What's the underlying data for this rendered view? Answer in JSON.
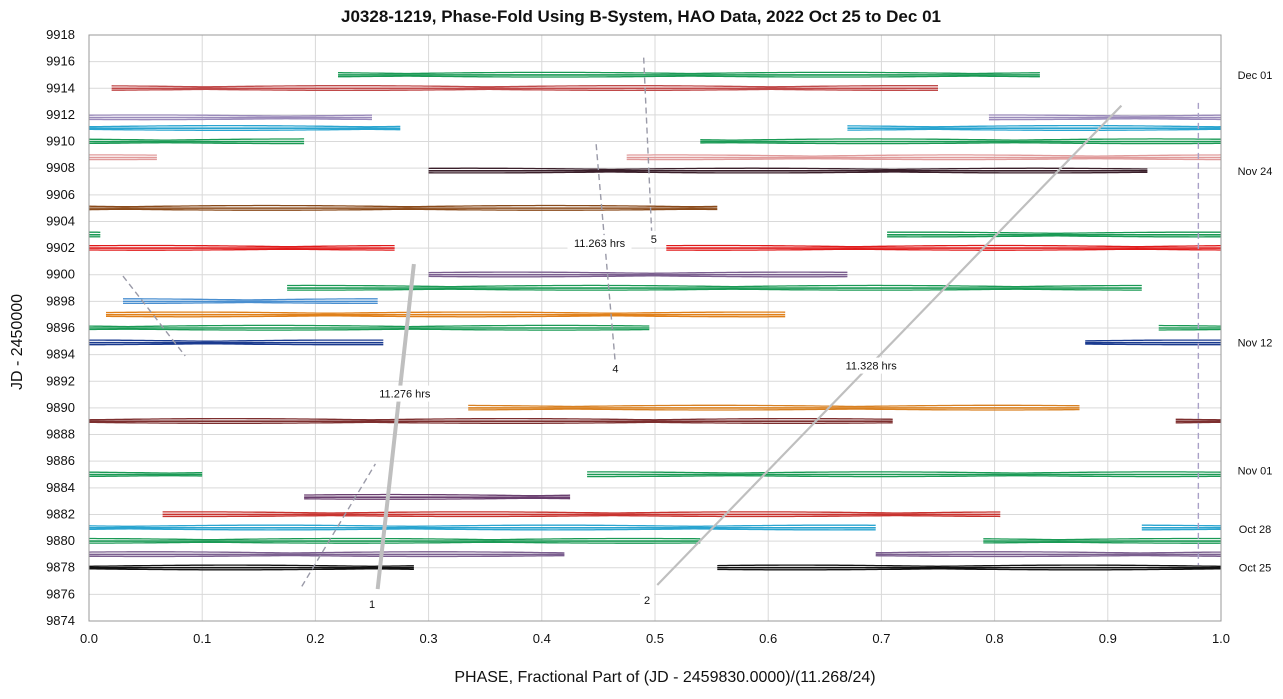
{
  "chart_data": {
    "type": "line",
    "title": "J0328-1219, Phase-Fold Using B-System, HAO Data, 2022 Oct 25 to Dec 01",
    "xlabel": "PHASE, Fractional Part of (JD - 2459830.0000)/(11.268/24)",
    "ylabel": "JD - 2450000",
    "xlim": [
      0.0,
      1.0
    ],
    "ylim": [
      9874,
      9918
    ],
    "xticks": [
      "0.0",
      "0.1",
      "0.2",
      "0.3",
      "0.4",
      "0.5",
      "0.6",
      "0.7",
      "0.8",
      "0.9",
      "1.0"
    ],
    "yticks": [
      "9874",
      "9876",
      "9878",
      "9880",
      "9882",
      "9884",
      "9886",
      "9888",
      "9890",
      "9892",
      "9894",
      "9896",
      "9898",
      "9900",
      "9902",
      "9904",
      "9906",
      "9908",
      "9910",
      "9912",
      "9914",
      "9916",
      "9918"
    ],
    "grid": true,
    "legend": "none",
    "series": [
      {
        "jd": 9878.0,
        "color": "#111111",
        "segments": [
          [
            0.0,
            0.287
          ],
          [
            0.555,
            1.0
          ]
        ]
      },
      {
        "jd": 9879.0,
        "color": "#7b5f8f",
        "segments": [
          [
            0.0,
            0.42
          ],
          [
            0.695,
            1.0
          ]
        ]
      },
      {
        "jd": 9880.0,
        "color": "#1a9a55",
        "segments": [
          [
            0.0,
            0.54
          ],
          [
            0.79,
            1.0
          ]
        ]
      },
      {
        "jd": 9881.0,
        "color": "#2aa5d0",
        "segments": [
          [
            0.0,
            0.695
          ],
          [
            0.93,
            1.0
          ]
        ]
      },
      {
        "jd": 9882.0,
        "color": "#c8332f",
        "segments": [
          [
            0.065,
            0.805
          ]
        ]
      },
      {
        "jd": 9883.3,
        "color": "#6a3f6f",
        "segments": [
          [
            0.19,
            0.425
          ]
        ]
      },
      {
        "jd": 9885.0,
        "color": "#1a9a55",
        "segments": [
          [
            0.0,
            0.1
          ],
          [
            0.44,
            1.0
          ]
        ]
      },
      {
        "jd": 9889.0,
        "color": "#7d2f2f",
        "segments": [
          [
            0.0,
            0.71
          ],
          [
            0.96,
            1.0
          ]
        ]
      },
      {
        "jd": 9890.0,
        "color": "#d98020",
        "segments": [
          [
            0.335,
            0.875
          ]
        ]
      },
      {
        "jd": 9894.9,
        "color": "#1a3a8f",
        "segments": [
          [
            0.0,
            0.26
          ],
          [
            0.88,
            1.0
          ]
        ]
      },
      {
        "jd": 9896.0,
        "color": "#1a9a55",
        "segments": [
          [
            0.0,
            0.495
          ],
          [
            0.945,
            1.0
          ]
        ]
      },
      {
        "jd": 9897.0,
        "color": "#e0801a",
        "segments": [
          [
            0.015,
            0.615
          ]
        ]
      },
      {
        "jd": 9898.0,
        "color": "#4a8fd0",
        "segments": [
          [
            0.03,
            0.255
          ]
        ]
      },
      {
        "jd": 9899.0,
        "color": "#1a9a55",
        "segments": [
          [
            0.175,
            0.93
          ]
        ]
      },
      {
        "jd": 9900.0,
        "color": "#7b5f8f",
        "segments": [
          [
            0.3,
            0.67
          ]
        ]
      },
      {
        "jd": 9902.0,
        "color": "#e01a1a",
        "segments": [
          [
            0.0,
            0.27
          ],
          [
            0.51,
            1.0
          ]
        ]
      },
      {
        "jd": 9903.0,
        "color": "#1a9a55",
        "segments": [
          [
            0.0,
            0.01
          ],
          [
            0.705,
            1.0
          ]
        ]
      },
      {
        "jd": 9905.0,
        "color": "#8a4a1a",
        "segments": [
          [
            0.0,
            0.555
          ]
        ]
      },
      {
        "jd": 9907.8,
        "color": "#3a1f2a",
        "segments": [
          [
            0.3,
            0.935
          ]
        ]
      },
      {
        "jd": 9908.8,
        "color": "#e09a9a",
        "segments": [
          [
            0.0,
            0.06
          ],
          [
            0.475,
            1.0
          ]
        ]
      },
      {
        "jd": 9910.0,
        "color": "#1a9a55",
        "segments": [
          [
            0.0,
            0.19
          ],
          [
            0.54,
            1.0
          ]
        ]
      },
      {
        "jd": 9911.0,
        "color": "#2aa5d0",
        "segments": [
          [
            0.0,
            0.275
          ],
          [
            0.67,
            1.0
          ]
        ]
      },
      {
        "jd": 9911.8,
        "color": "#9a8aba",
        "segments": [
          [
            0.0,
            0.25
          ],
          [
            0.795,
            1.0
          ]
        ]
      },
      {
        "jd": 9914.0,
        "color": "#c04a4a",
        "segments": [
          [
            0.02,
            0.75
          ]
        ]
      },
      {
        "jd": 9915.0,
        "color": "#1a9a55",
        "segments": [
          [
            0.22,
            0.84
          ]
        ]
      }
    ],
    "trend_lines": [
      {
        "id": "1",
        "label": "11.276 hrs",
        "style": "solid",
        "color": "#bfbfbf",
        "points": [
          [
            0.255,
            9876.4
          ],
          [
            0.287,
            9900.8
          ]
        ]
      },
      {
        "id": "1b",
        "style": "dashed",
        "color": "#9a9aa8",
        "points": [
          [
            0.188,
            9876.6
          ],
          [
            0.253,
            9885.8
          ]
        ]
      },
      {
        "id": "1c",
        "style": "dashed",
        "color": "#9a9aa8",
        "points": [
          [
            0.03,
            9899.9
          ],
          [
            0.085,
            9893.9
          ]
        ]
      },
      {
        "id": "2",
        "label": "11.328 hrs",
        "style": "solid",
        "color": "#bfbfbf",
        "points": [
          [
            0.502,
            9876.7
          ],
          [
            0.912,
            9912.7
          ]
        ]
      },
      {
        "id": "4",
        "label": "11.263 hrs",
        "style": "dashed",
        "color": "#9a9aa8",
        "points": [
          [
            0.448,
            9909.8
          ],
          [
            0.465,
            9893.3
          ]
        ]
      },
      {
        "id": "5",
        "style": "dashed",
        "color": "#9a9aa8",
        "points": [
          [
            0.49,
            9916.3
          ],
          [
            0.497,
            9903.3
          ]
        ]
      },
      {
        "id": "6",
        "style": "dashed",
        "color": "#a9a0c8",
        "points": [
          [
            0.98,
            9912.9
          ],
          [
            0.98,
            9878.2
          ]
        ]
      }
    ],
    "annotations": [
      {
        "text": "11.276 hrs",
        "x": 0.279,
        "y": 9891.0
      },
      {
        "text": "11.328 hrs",
        "x": 0.691,
        "y": 9893.1
      },
      {
        "text": "11.263 hrs",
        "x": 0.451,
        "y": 9902.3
      },
      {
        "text": "1",
        "x": 0.25,
        "y": 9875.2
      },
      {
        "text": "2",
        "x": 0.493,
        "y": 9875.5
      },
      {
        "text": "4",
        "x": 0.465,
        "y": 9892.9
      },
      {
        "text": "5",
        "x": 0.499,
        "y": 9902.6
      }
    ],
    "date_labels": [
      {
        "text": "Dec 01",
        "y": 9915.0
      },
      {
        "text": "Nov 24",
        "y": 9907.8
      },
      {
        "text": "Nov 12",
        "y": 9894.9
      },
      {
        "text": "Nov 01",
        "y": 9885.3
      },
      {
        "text": "Oct 28",
        "y": 9880.9
      },
      {
        "text": "Oct 25",
        "y": 9878.0
      }
    ]
  }
}
